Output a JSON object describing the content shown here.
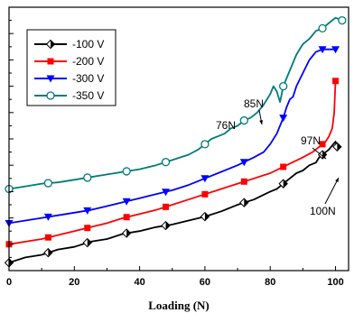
{
  "chart_data": {
    "type": "line",
    "xlabel": "Loading (N)",
    "ylabel": "",
    "xlim": [
      0,
      104
    ],
    "ylim": [
      0,
      100
    ],
    "x_ticks": [
      "0",
      "20",
      "40",
      "60",
      "80",
      "100"
    ],
    "y_ticks_labeled": false,
    "grid": false,
    "legend_position": "top-left",
    "series": [
      {
        "name": "-100 V",
        "color": "#000000",
        "marker": "half-diamond",
        "points": [
          [
            0,
            3
          ],
          [
            5,
            5
          ],
          [
            10,
            6
          ],
          [
            15,
            8
          ],
          [
            20,
            9
          ],
          [
            25,
            11
          ],
          [
            30,
            12
          ],
          [
            35,
            14
          ],
          [
            40,
            15
          ],
          [
            45,
            16.5
          ],
          [
            50,
            17.5
          ],
          [
            55,
            19
          ],
          [
            60,
            20.5
          ],
          [
            65,
            22.5
          ],
          [
            70,
            25
          ],
          [
            75,
            27
          ],
          [
            80,
            30
          ],
          [
            82,
            31
          ],
          [
            84,
            33
          ],
          [
            86,
            35
          ],
          [
            88,
            37
          ],
          [
            90,
            38
          ],
          [
            92,
            40
          ],
          [
            94,
            41
          ],
          [
            95,
            43
          ],
          [
            96,
            44
          ],
          [
            97,
            45
          ],
          [
            98,
            46
          ],
          [
            99,
            47.5
          ],
          [
            100,
            49
          ],
          [
            100.5,
            47
          ]
        ]
      },
      {
        "name": "-200 V",
        "color": "#ff0000",
        "marker": "square",
        "points": [
          [
            0,
            10
          ],
          [
            5,
            11
          ],
          [
            10,
            12
          ],
          [
            15,
            13.5
          ],
          [
            20,
            15
          ],
          [
            25,
            16.5
          ],
          [
            30,
            18
          ],
          [
            35,
            20
          ],
          [
            40,
            21.5
          ],
          [
            45,
            23
          ],
          [
            50,
            25
          ],
          [
            55,
            27
          ],
          [
            60,
            29
          ],
          [
            65,
            31
          ],
          [
            70,
            33
          ],
          [
            75,
            35
          ],
          [
            80,
            37
          ],
          [
            85,
            40
          ],
          [
            90,
            43
          ],
          [
            93,
            45
          ],
          [
            95,
            47
          ],
          [
            97,
            49
          ],
          [
            98,
            51
          ],
          [
            99,
            54
          ],
          [
            99.6,
            60
          ],
          [
            100,
            72
          ]
        ]
      },
      {
        "name": "-300 V",
        "color": "#0000ff",
        "marker": "triangle-down",
        "points": [
          [
            0,
            18
          ],
          [
            5,
            19
          ],
          [
            10,
            20
          ],
          [
            15,
            21
          ],
          [
            20,
            22
          ],
          [
            25,
            23
          ],
          [
            30,
            24.5
          ],
          [
            35,
            26
          ],
          [
            40,
            27.5
          ],
          [
            45,
            29
          ],
          [
            50,
            30.5
          ],
          [
            55,
            32.5
          ],
          [
            60,
            35
          ],
          [
            65,
            37.5
          ],
          [
            70,
            40
          ],
          [
            75,
            43
          ],
          [
            78,
            45
          ],
          [
            80,
            48
          ],
          [
            82,
            52
          ],
          [
            84,
            58
          ],
          [
            85,
            62
          ],
          [
            86,
            65
          ],
          [
            87,
            66
          ],
          [
            88,
            70
          ],
          [
            90,
            75
          ],
          [
            92,
            80
          ],
          [
            94,
            83
          ],
          [
            96,
            84
          ],
          [
            98,
            84
          ],
          [
            100,
            84
          ]
        ]
      },
      {
        "name": "-350 V",
        "color": "#007b7b",
        "marker": "circle-open",
        "points": [
          [
            0,
            31
          ],
          [
            5,
            32
          ],
          [
            10,
            33
          ],
          [
            15,
            33.5
          ],
          [
            20,
            34.5
          ],
          [
            25,
            35.5
          ],
          [
            30,
            36.5
          ],
          [
            35,
            37.5
          ],
          [
            40,
            38.5
          ],
          [
            45,
            40
          ],
          [
            50,
            42
          ],
          [
            55,
            44
          ],
          [
            58,
            46
          ],
          [
            60,
            48
          ],
          [
            62,
            50
          ],
          [
            64,
            51
          ],
          [
            66,
            52
          ],
          [
            68,
            54
          ],
          [
            70,
            55
          ],
          [
            72,
            57
          ],
          [
            74,
            58
          ],
          [
            76,
            60
          ],
          [
            78,
            63
          ],
          [
            80,
            67
          ],
          [
            81,
            70
          ],
          [
            82,
            68
          ],
          [
            83,
            64
          ],
          [
            84,
            70
          ],
          [
            86,
            76
          ],
          [
            88,
            82
          ],
          [
            90,
            86
          ],
          [
            92,
            88
          ],
          [
            94,
            91
          ],
          [
            96,
            92
          ],
          [
            98,
            94
          ],
          [
            100,
            96
          ],
          [
            102,
            95
          ]
        ]
      }
    ],
    "annotations": [
      {
        "text": "76N",
        "x": 76,
        "y": 60
      },
      {
        "text": "85N",
        "x": 85,
        "y": 66
      },
      {
        "text": "97N",
        "x": 97,
        "y": 49
      },
      {
        "text": "100N",
        "x": 100,
        "y": 49
      }
    ]
  }
}
